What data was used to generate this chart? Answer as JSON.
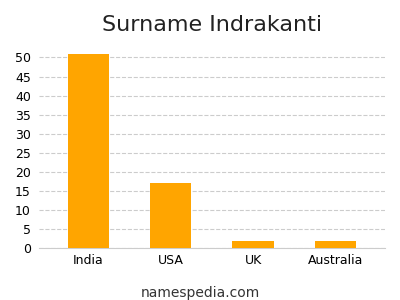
{
  "title": "Surname Indrakanti",
  "categories": [
    "India",
    "USA",
    "UK",
    "Australia"
  ],
  "values": [
    51,
    17,
    2,
    2
  ],
  "bar_color": "#FFA500",
  "background_color": "#ffffff",
  "grid_color": "#cccccc",
  "ylim": [
    0,
    54
  ],
  "yticks": [
    0,
    5,
    10,
    15,
    20,
    25,
    30,
    35,
    40,
    45,
    50
  ],
  "footer": "namespedia.com",
  "title_fontsize": 16,
  "tick_fontsize": 9,
  "footer_fontsize": 10
}
